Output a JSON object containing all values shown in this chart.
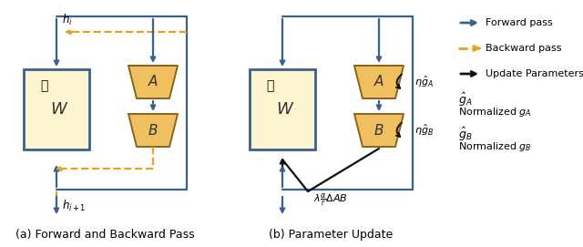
{
  "bg_color": "#ffffff",
  "box_face": "#f0c060",
  "box_face_light": "#faebc8",
  "box_edge": "#8a6520",
  "W_face": "#fdf5d0",
  "W_edge": "#3a6090",
  "blue": "#3a6090",
  "orange": "#e8a020",
  "black": "#111111",
  "title_a": "(a) Forward and Backward Pass",
  "title_b": "(b) Parameter Update",
  "fw_label": "Forward pass",
  "bw_label": "Backward pass",
  "up_label": "Update Parameters",
  "gA_label": "$\\hat{g}_A$",
  "gA_sub": "Normalized $g_A$",
  "gB_label": "$\\hat{g}_B$",
  "gB_sub": "Normalized $g_B$",
  "hi_label": "$h_i$",
  "hi1_label": "$h_{i+1}$",
  "lam_label": "$\\lambda\\frac{\\alpha}{r}\\Delta AB$",
  "etaA_label": "$\\eta\\hat{g}_A$",
  "etaB_label": "$\\eta\\hat{g}_B$"
}
